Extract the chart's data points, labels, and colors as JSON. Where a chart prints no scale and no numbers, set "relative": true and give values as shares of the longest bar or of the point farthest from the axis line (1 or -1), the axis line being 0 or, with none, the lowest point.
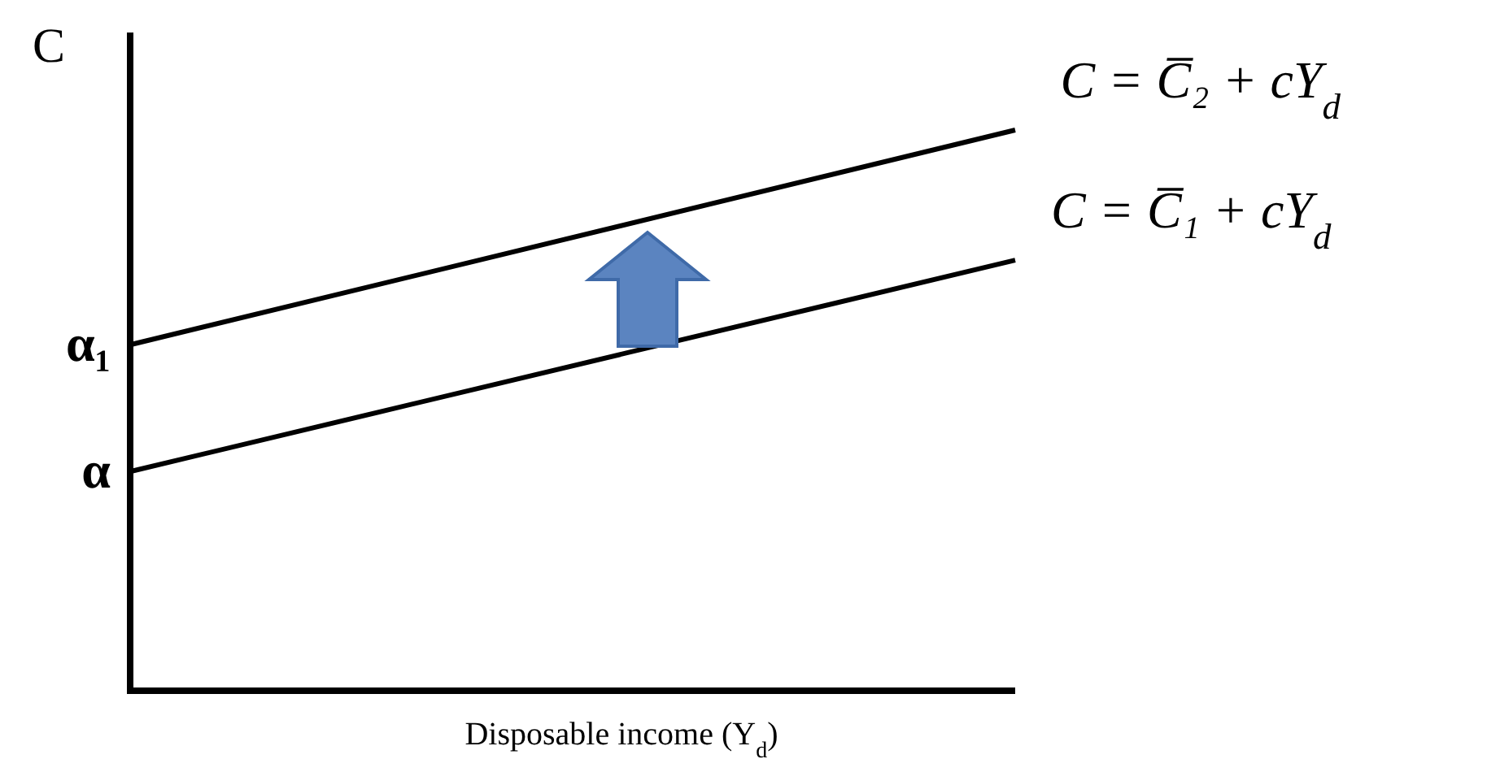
{
  "chart_data": {
    "type": "line",
    "relative": true,
    "ylabel": "C",
    "xlabel": "Disposable income (Y$_{d}$)",
    "categories": [
      null,
      null
    ],
    "series": [
      {
        "name": "C = C̅₁ + cY$_{d}$",
        "color": "#000000",
        "values": [
          0.391,
          0.768
        ]
      },
      {
        "name": "C = C̅₂ + cY$_{d}$",
        "color": "#000000",
        "values": [
          0.617,
          1.0
        ]
      }
    ],
    "annotations": [
      "α",
      "α₁"
    ],
    "ref_lines": [
      {
        "axis": "y",
        "value": 0,
        "color": "#000000"
      }
    ],
    "marker": "none",
    "line_style": "solid"
  }
}
